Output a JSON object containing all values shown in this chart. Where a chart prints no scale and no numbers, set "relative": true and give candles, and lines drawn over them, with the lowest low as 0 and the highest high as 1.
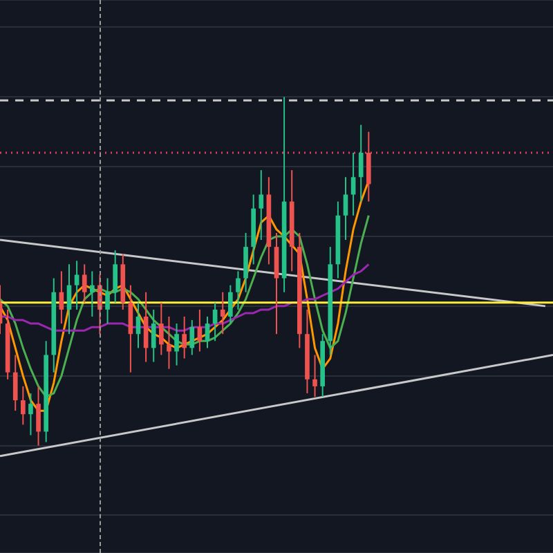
{
  "chart_data": {
    "type": "candlestick",
    "relative": true,
    "grid": "y",
    "marker": "none",
    "categories": [
      null,
      null,
      null,
      null,
      null,
      null,
      null,
      null,
      null,
      null,
      null,
      null,
      null,
      null,
      null,
      null,
      null,
      null,
      null,
      null,
      null,
      null,
      null,
      null,
      null,
      null,
      null,
      null,
      null,
      null,
      null,
      null,
      null,
      null,
      null,
      null,
      null,
      null,
      null,
      null,
      null,
      null,
      null,
      null,
      null,
      null,
      null,
      null,
      null,
      null,
      null,
      null,
      null,
      null,
      null,
      null,
      null,
      null,
      null,
      null,
      null,
      null,
      null,
      null,
      null,
      null,
      null,
      null,
      null,
      null,
      null,
      null,
      null
    ],
    "ohlc": [
      [
        0.41,
        0.46,
        0.32,
        0.35
      ],
      [
        0.35,
        0.39,
        0.19,
        0.21
      ],
      [
        0.21,
        0.26,
        0.1,
        0.13
      ],
      [
        0.13,
        0.17,
        0.06,
        0.09
      ],
      [
        0.09,
        0.15,
        0.03,
        0.12
      ],
      [
        0.12,
        0.17,
        0,
        0.04
      ],
      [
        0.04,
        0.3,
        0.01,
        0.26
      ],
      [
        0.26,
        0.48,
        0.21,
        0.44
      ],
      [
        0.44,
        0.5,
        0.35,
        0.39
      ],
      [
        0.39,
        0.52,
        0.32,
        0.46
      ],
      [
        0.46,
        0.53,
        0.39,
        0.49
      ],
      [
        0.49,
        0.52,
        0.41,
        0.44
      ],
      [
        0.44,
        0.5,
        0.37,
        0.46
      ],
      [
        0.46,
        0.49,
        0.32,
        0.39
      ],
      [
        0.39,
        0.48,
        0.35,
        0.44
      ],
      [
        0.44,
        0.56,
        0.41,
        0.52
      ],
      [
        0.52,
        0.55,
        0.39,
        0.41
      ],
      [
        0.41,
        0.46,
        0.21,
        0.32
      ],
      [
        0.32,
        0.41,
        0.28,
        0.37
      ],
      [
        0.37,
        0.44,
        0.24,
        0.28
      ],
      [
        0.28,
        0.39,
        0.24,
        0.35
      ],
      [
        0.35,
        0.41,
        0.26,
        0.29
      ],
      [
        0.29,
        0.37,
        0.22,
        0.27
      ],
      [
        0.27,
        0.35,
        0.23,
        0.32
      ],
      [
        0.32,
        0.37,
        0.25,
        0.28
      ],
      [
        0.28,
        0.36,
        0.26,
        0.34
      ],
      [
        0.34,
        0.39,
        0.27,
        0.3
      ],
      [
        0.3,
        0.37,
        0.28,
        0.35
      ],
      [
        0.35,
        0.41,
        0.3,
        0.39
      ],
      [
        0.39,
        0.44,
        0.32,
        0.37
      ],
      [
        0.37,
        0.46,
        0.35,
        0.44
      ],
      [
        0.44,
        0.5,
        0.39,
        0.48
      ],
      [
        0.48,
        0.61,
        0.44,
        0.57
      ],
      [
        0.57,
        0.72,
        0.52,
        0.68
      ],
      [
        0.68,
        0.79,
        0.59,
        0.72
      ],
      [
        0.72,
        0.77,
        0.52,
        0.57
      ],
      [
        0.57,
        0.61,
        0.32,
        0.48
      ],
      [
        0.48,
        1,
        0.44,
        0.7
      ],
      [
        0.7,
        0.79,
        0.5,
        0.57
      ],
      [
        0.57,
        0.61,
        0.28,
        0.32
      ],
      [
        0.32,
        0.39,
        0.15,
        0.19
      ],
      [
        0.19,
        0.26,
        0.14,
        0.17
      ],
      [
        0.17,
        0.32,
        0.14,
        0.3
      ],
      [
        0.3,
        0.57,
        0.26,
        0.52
      ],
      [
        0.52,
        0.7,
        0.48,
        0.66
      ],
      [
        0.66,
        0.77,
        0.59,
        0.72
      ],
      [
        0.72,
        0.84,
        0.66,
        0.77
      ],
      [
        0.77,
        0.92,
        0.7,
        0.84
      ],
      [
        0.84,
        0.9,
        0.7,
        0.75
      ],
      null,
      null,
      null,
      null,
      null,
      null,
      null,
      null,
      null,
      null,
      null,
      null,
      null,
      null,
      null,
      null,
      null,
      null,
      null,
      null,
      null,
      null,
      null,
      null
    ],
    "colors": [
      "#ef5350",
      "#ef5350",
      "#ef5350",
      "#ef5350",
      "#26c28a",
      "#ef5350",
      "#26c28a",
      "#26c28a",
      "#ef5350",
      "#26c28a",
      "#26c28a",
      "#ef5350",
      "#26c28a",
      "#ef5350",
      "#26c28a",
      "#26c28a",
      "#ef5350",
      "#ef5350",
      "#26c28a",
      "#ef5350",
      "#26c28a",
      "#ef5350",
      "#ef5350",
      "#26c28a",
      "#ef5350",
      "#26c28a",
      "#ef5350",
      "#26c28a",
      "#26c28a",
      "#ef5350",
      "#26c28a",
      "#26c28a",
      "#26c28a",
      "#26c28a",
      "#26c28a",
      "#ef5350",
      "#ef5350",
      "#26c28a",
      "#ef5350",
      "#ef5350",
      "#ef5350",
      "#ef5350",
      "#26c28a",
      "#26c28a",
      "#26c28a",
      "#26c28a",
      "#26c28a",
      "#26c28a",
      "#ef5350",
      null,
      null,
      null,
      null,
      null,
      null,
      null,
      null,
      null,
      null,
      null,
      null,
      null,
      null,
      null,
      null,
      null,
      null,
      null,
      null,
      null,
      null,
      null,
      null
    ],
    "series": [
      {
        "type": "line",
        "color": "#ffeb3b",
        "line_style": "solid",
        "values": [
          0.41,
          null,
          null,
          null,
          null,
          null,
          null,
          null,
          null,
          null,
          null,
          null,
          null,
          null,
          null,
          null,
          null,
          null,
          null,
          null,
          null,
          null,
          null,
          null,
          null,
          null,
          null,
          null,
          null,
          null,
          null,
          null,
          null,
          null,
          null,
          null,
          null,
          null,
          null,
          null,
          null,
          null,
          null,
          null,
          null,
          null,
          null,
          null,
          null,
          null,
          null,
          null,
          null,
          null,
          null,
          null,
          null,
          null,
          null,
          null,
          null,
          null,
          null,
          null,
          null,
          null,
          null,
          null,
          null,
          null,
          null,
          null,
          0.41
        ]
      },
      {
        "type": "line",
        "color": "#c8c8c8",
        "line_style": "dashed",
        "values": [
          0.99,
          null,
          null,
          null,
          null,
          null,
          null,
          null,
          null,
          null,
          null,
          null,
          null,
          null,
          null,
          null,
          null,
          null,
          null,
          null,
          null,
          null,
          null,
          null,
          null,
          null,
          null,
          null,
          null,
          null,
          null,
          null,
          null,
          null,
          null,
          null,
          null,
          null,
          null,
          null,
          null,
          null,
          null,
          null,
          null,
          null,
          null,
          null,
          null,
          null,
          null,
          null,
          null,
          null,
          null,
          null,
          null,
          null,
          null,
          null,
          null,
          null,
          null,
          null,
          null,
          null,
          null,
          null,
          null,
          null,
          null,
          null,
          0.99
        ]
      },
      {
        "type": "line",
        "color": "#e0405a",
        "line_style": "dotted",
        "values": [
          0.84,
          null,
          null,
          null,
          null,
          null,
          null,
          null,
          null,
          null,
          null,
          null,
          null,
          null,
          null,
          null,
          null,
          null,
          null,
          null,
          null,
          null,
          null,
          null,
          null,
          null,
          null,
          null,
          null,
          null,
          null,
          null,
          null,
          null,
          null,
          null,
          null,
          null,
          null,
          null,
          null,
          null,
          null,
          null,
          null,
          null,
          null,
          null,
          null,
          null,
          null,
          null,
          null,
          null,
          null,
          null,
          null,
          null,
          null,
          null,
          null,
          null,
          null,
          null,
          null,
          null,
          null,
          null,
          null,
          null,
          null,
          null,
          0.84
        ]
      },
      {
        "type": "line",
        "color": "#9c27b0",
        "values": [
          0.37,
          0.37,
          0.36,
          0.36,
          0.35,
          0.35,
          0.34,
          0.33,
          0.33,
          0.33,
          0.33,
          0.33,
          0.34,
          0.34,
          0.35,
          0.35,
          0.35,
          0.34,
          0.34,
          0.34,
          0.34,
          0.34,
          0.34,
          0.33,
          0.33,
          0.34,
          0.34,
          0.34,
          0.35,
          0.35,
          0.36,
          0.37,
          0.38,
          0.38,
          0.39,
          0.39,
          0.4,
          0.4,
          0.41,
          0.41,
          0.42,
          0.42,
          0.43,
          0.44,
          0.45,
          0.47,
          0.49,
          0.5,
          0.52,
          null,
          null,
          null,
          null,
          null,
          null,
          null,
          null,
          null,
          null,
          null,
          null,
          null,
          null,
          null,
          null,
          null,
          null,
          null,
          null,
          null,
          null,
          null,
          null
        ]
      },
      {
        "type": "line",
        "color": "#4caf50",
        "values": [
          0.42,
          0.4,
          0.35,
          0.28,
          0.22,
          0.17,
          0.14,
          0.15,
          0.2,
          0.28,
          0.36,
          0.42,
          0.44,
          0.45,
          0.44,
          0.44,
          0.45,
          0.44,
          0.42,
          0.39,
          0.36,
          0.34,
          0.32,
          0.3,
          0.29,
          0.29,
          0.3,
          0.3,
          0.31,
          0.33,
          0.35,
          0.38,
          0.42,
          0.48,
          0.54,
          0.59,
          0.6,
          0.6,
          0.62,
          0.6,
          0.52,
          0.42,
          0.33,
          0.28,
          0.3,
          0.38,
          0.48,
          0.58,
          0.66,
          null,
          null,
          null,
          null,
          null,
          null,
          null,
          null,
          null,
          null,
          null,
          null,
          null,
          null,
          null,
          null,
          null,
          null,
          null,
          null,
          null,
          null,
          null,
          null
        ]
      },
      {
        "type": "line",
        "color": "#ff9800",
        "values": [
          0.4,
          0.36,
          0.28,
          0.2,
          0.13,
          0.1,
          0.1,
          0.18,
          0.3,
          0.4,
          0.44,
          0.46,
          0.45,
          0.44,
          0.43,
          0.45,
          0.46,
          0.42,
          0.38,
          0.34,
          0.32,
          0.31,
          0.29,
          0.28,
          0.29,
          0.3,
          0.31,
          0.32,
          0.34,
          0.36,
          0.39,
          0.42,
          0.48,
          0.56,
          0.64,
          0.66,
          0.62,
          0.6,
          null,
          0.55,
          0.42,
          0.28,
          0.22,
          0.25,
          0.35,
          0.5,
          0.62,
          0.7,
          0.76,
          null,
          null,
          null,
          null,
          null,
          null,
          null,
          null,
          null,
          null,
          null,
          null,
          null,
          null,
          null,
          null,
          null,
          null,
          null,
          null,
          null,
          null,
          null,
          null
        ]
      },
      {
        "type": "line",
        "color": "#c8c8c8",
        "values": [
          0.59,
          null,
          null,
          null,
          null,
          null,
          null,
          null,
          null,
          null,
          null,
          null,
          null,
          null,
          null,
          null,
          null,
          null,
          null,
          null,
          null,
          null,
          null,
          null,
          null,
          null,
          null,
          null,
          null,
          null,
          null,
          null,
          null,
          null,
          null,
          null,
          null,
          null,
          null,
          null,
          null,
          null,
          null,
          null,
          null,
          null,
          null,
          null,
          null,
          null,
          null,
          null,
          null,
          null,
          null,
          null,
          null,
          null,
          null,
          null,
          null,
          null,
          null,
          null,
          null,
          null,
          null,
          null,
          null,
          null,
          null,
          0.4,
          null
        ]
      },
      {
        "type": "line",
        "color": "#c8c8c8",
        "values": [
          -0.03,
          null,
          null,
          null,
          null,
          null,
          null,
          null,
          null,
          null,
          null,
          null,
          null,
          null,
          null,
          null,
          null,
          null,
          null,
          null,
          null,
          null,
          null,
          null,
          null,
          null,
          null,
          null,
          null,
          null,
          null,
          null,
          null,
          null,
          null,
          null,
          null,
          null,
          null,
          null,
          null,
          null,
          null,
          null,
          null,
          null,
          null,
          null,
          null,
          null,
          null,
          null,
          null,
          null,
          null,
          null,
          null,
          null,
          null,
          null,
          null,
          null,
          null,
          null,
          null,
          null,
          null,
          null,
          null,
          null,
          null,
          null,
          0.26
        ]
      }
    ]
  }
}
